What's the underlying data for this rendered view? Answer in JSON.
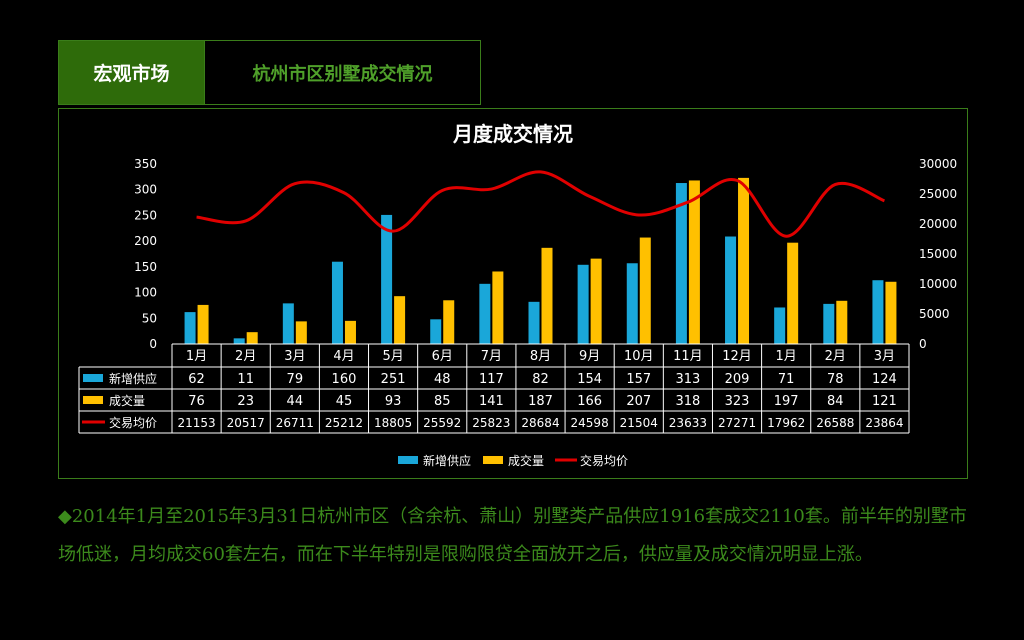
{
  "header": {
    "tab_active": "宏观市场",
    "tab_title": "杭州市区别墅成交情况"
  },
  "description": "◆2014年1月至2015年3月31日杭州市区（含余杭、萧山）别墅类产品供应1916套成交2110套。前半年的别墅市场低迷，月均成交60套左右，而在下半年特别是限购限贷全面放开之后，供应量及成交情况明显上涨。",
  "chart_data": {
    "type": "bar",
    "title": "月度成交情况",
    "categories": [
      "1月",
      "2月",
      "3月",
      "4月",
      "5月",
      "6月",
      "7月",
      "8月",
      "9月",
      "10月",
      "11月",
      "12月",
      "1月",
      "2月",
      "3月"
    ],
    "series": [
      {
        "name": "新增供应",
        "type": "bar",
        "axis": "left",
        "color": "#1aa7d9",
        "values": [
          62,
          11,
          79,
          160,
          251,
          48,
          117,
          82,
          154,
          157,
          313,
          209,
          71,
          78,
          124
        ]
      },
      {
        "name": "成交量",
        "type": "bar",
        "axis": "left",
        "color": "#ffc000",
        "values": [
          76,
          23,
          44,
          45,
          93,
          85,
          141,
          187,
          166,
          207,
          318,
          323,
          197,
          84,
          121
        ]
      },
      {
        "name": "交易均价",
        "type": "line",
        "axis": "right",
        "color": "#e00000",
        "values": [
          21153,
          20517,
          26711,
          25212,
          18805,
          25592,
          25823,
          28684,
          24598,
          21504,
          23633,
          27271,
          17962,
          26588,
          23864
        ]
      }
    ],
    "y_left": {
      "min": 0,
      "max": 350,
      "ticks": [
        0,
        50,
        100,
        150,
        200,
        250,
        300,
        350
      ]
    },
    "y_right": {
      "min": 0,
      "max": 30000,
      "ticks": [
        0,
        5000,
        10000,
        15000,
        20000,
        25000,
        30000
      ]
    },
    "legend_position": "bottom",
    "data_table": true,
    "grid": false
  }
}
